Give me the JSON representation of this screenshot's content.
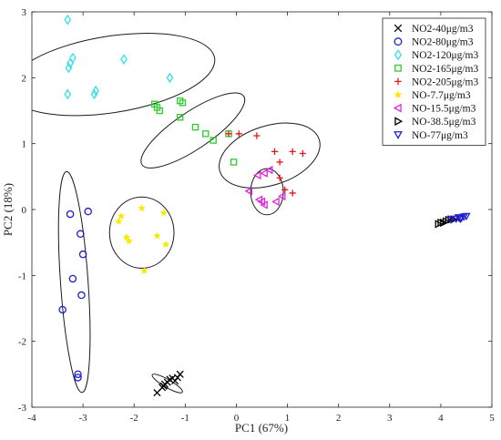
{
  "chart_data": {
    "type": "scatter",
    "xlabel": "PC1 (67%)",
    "ylabel": "PC2 (18%)",
    "xlim": [
      -4,
      5
    ],
    "ylim": [
      -3,
      3
    ],
    "xticks": [
      "-4",
      "-3",
      "-2",
      "-1",
      "0",
      "1",
      "2",
      "3",
      "4",
      "5"
    ],
    "yticks": [
      "-3",
      "-2",
      "-1",
      "0",
      "1",
      "2",
      "3"
    ],
    "grid": false,
    "legend_position": "top-right",
    "series": [
      {
        "name": "NO2-40μg/m3",
        "marker": "x",
        "color": "#000000",
        "points": [
          [
            -1.55,
            -2.78
          ],
          [
            -1.45,
            -2.7
          ],
          [
            -1.4,
            -2.65
          ],
          [
            -1.35,
            -2.62
          ],
          [
            -1.3,
            -2.58
          ],
          [
            -1.25,
            -2.56
          ],
          [
            -1.2,
            -2.6
          ],
          [
            -1.15,
            -2.55
          ],
          [
            -1.1,
            -2.5
          ],
          [
            -1.42,
            -2.68
          ]
        ]
      },
      {
        "name": "NO2-80μg/m3",
        "marker": "circle",
        "color": "#1f1fd0",
        "points": [
          [
            -3.25,
            -0.07
          ],
          [
            -2.9,
            -0.03
          ],
          [
            -3.05,
            -0.37
          ],
          [
            -3.0,
            -0.68
          ],
          [
            -3.2,
            -1.05
          ],
          [
            -3.03,
            -1.3
          ],
          [
            -3.4,
            -1.52
          ],
          [
            -3.1,
            -2.5
          ],
          [
            -3.1,
            -2.55
          ]
        ]
      },
      {
        "name": "NO2-120μg/m3",
        "marker": "diamond",
        "color": "#33e0e8",
        "points": [
          [
            -3.3,
            2.88
          ],
          [
            -3.2,
            2.3
          ],
          [
            -3.28,
            2.15
          ],
          [
            -3.3,
            1.75
          ],
          [
            -2.75,
            1.8
          ],
          [
            -2.78,
            1.75
          ],
          [
            -2.2,
            2.28
          ],
          [
            -1.3,
            2.0
          ],
          [
            -3.25,
            2.22
          ]
        ]
      },
      {
        "name": "NO2-165μg/m3",
        "marker": "square",
        "color": "#2ecc2e",
        "points": [
          [
            -1.6,
            1.6
          ],
          [
            -1.55,
            1.55
          ],
          [
            -1.5,
            1.5
          ],
          [
            -1.1,
            1.65
          ],
          [
            -1.05,
            1.62
          ],
          [
            -1.1,
            1.4
          ],
          [
            -0.8,
            1.25
          ],
          [
            -0.6,
            1.15
          ],
          [
            -0.45,
            1.05
          ],
          [
            -0.15,
            1.15
          ],
          [
            -0.05,
            0.72
          ]
        ]
      },
      {
        "name": "NO2-205μg/m3",
        "marker": "plus",
        "color": "#dd1a1a",
        "points": [
          [
            -0.15,
            1.15
          ],
          [
            0.05,
            1.15
          ],
          [
            0.4,
            1.12
          ],
          [
            0.75,
            0.88
          ],
          [
            0.85,
            0.72
          ],
          [
            1.1,
            0.88
          ],
          [
            1.3,
            0.85
          ],
          [
            0.85,
            0.48
          ],
          [
            0.95,
            0.3
          ],
          [
            1.1,
            0.25
          ]
        ]
      },
      {
        "name": "NO-7.7μg/m3",
        "marker": "star",
        "color": "#f5ea00",
        "points": [
          [
            -2.25,
            -0.1
          ],
          [
            -2.15,
            -0.42
          ],
          [
            -2.1,
            -0.48
          ],
          [
            -1.85,
            0.02
          ],
          [
            -1.55,
            -0.4
          ],
          [
            -1.42,
            -0.05
          ],
          [
            -1.38,
            -0.53
          ],
          [
            -1.8,
            -0.93
          ],
          [
            -2.3,
            -0.18
          ]
        ]
      },
      {
        "name": "NO-15.5μg/m3",
        "marker": "triangle-left",
        "color": "#dd22dd",
        "points": [
          [
            0.25,
            0.28
          ],
          [
            0.45,
            0.15
          ],
          [
            0.5,
            0.12
          ],
          [
            0.55,
            0.55
          ],
          [
            0.65,
            0.6
          ],
          [
            0.78,
            0.12
          ],
          [
            0.9,
            0.2
          ],
          [
            0.55,
            0.07
          ],
          [
            0.42,
            0.52
          ]
        ]
      },
      {
        "name": "NO-38.5μg/m3",
        "marker": "triangle-right",
        "color": "#000000",
        "points": [
          [
            3.95,
            -0.22
          ],
          [
            4.0,
            -0.2
          ],
          [
            4.05,
            -0.2
          ],
          [
            4.1,
            -0.18
          ],
          [
            4.15,
            -0.16
          ],
          [
            4.2,
            -0.15
          ],
          [
            4.25,
            -0.15
          ]
        ]
      },
      {
        "name": "NO-77μg/m3",
        "marker": "triangle-down",
        "color": "#1f1fd0",
        "points": [
          [
            4.2,
            -0.15
          ],
          [
            4.3,
            -0.14
          ],
          [
            4.35,
            -0.12
          ],
          [
            4.4,
            -0.13
          ],
          [
            4.45,
            -0.11
          ],
          [
            4.5,
            -0.1
          ],
          [
            4.38,
            -0.14
          ]
        ]
      }
    ],
    "ellipses": [
      {
        "cx": -2.45,
        "cy": 2.05,
        "rx": 2.05,
        "ry": 0.58,
        "angle_deg": -9
      },
      {
        "cx": -0.85,
        "cy": 1.2,
        "rx": 1.2,
        "ry": 0.28,
        "angle_deg": -34
      },
      {
        "cx": 0.65,
        "cy": 0.82,
        "rx": 1.02,
        "ry": 0.45,
        "angle_deg": -18
      },
      {
        "cx": 0.6,
        "cy": 0.27,
        "rx": 0.32,
        "ry": 0.35,
        "angle_deg": 0
      },
      {
        "cx": -1.85,
        "cy": -0.35,
        "rx": 0.63,
        "ry": 0.54,
        "angle_deg": 0
      },
      {
        "cx": -3.17,
        "cy": -1.1,
        "rx": 0.27,
        "ry": 1.68,
        "angle_deg": -4
      },
      {
        "cx": -1.35,
        "cy": -2.64,
        "rx": 0.34,
        "ry": 0.06,
        "angle_deg": 30
      }
    ]
  }
}
